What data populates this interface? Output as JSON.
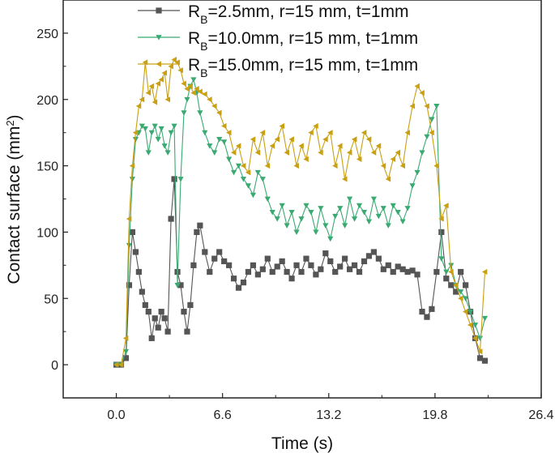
{
  "chart_data": {
    "type": "line",
    "xlabel": "Time (s)",
    "ylabel_main": "Contact surface (mm",
    "ylabel_sup": "2",
    "ylabel_close": ")",
    "xlim": [
      -3.3,
      26.4
    ],
    "ylim": [
      -25,
      275
    ],
    "xticks": [
      0.0,
      6.6,
      13.2,
      19.8,
      26.4
    ],
    "xtick_labels": [
      "0.0",
      "6.6",
      "13.2",
      "19.8",
      "26.4"
    ],
    "yticks": [
      0,
      50,
      100,
      150,
      200,
      250
    ],
    "ytick_labels": [
      "0",
      "50",
      "100",
      "150",
      "200",
      "250"
    ],
    "legend_position": "top",
    "grid": false,
    "series": [
      {
        "name_main": "R",
        "name_sub": "B",
        "name_rest": "=2.5mm, r=15 mm, t=1mm",
        "color": "#555555",
        "marker": "square",
        "x": [
          0.0,
          0.3,
          0.6,
          0.8,
          1.0,
          1.2,
          1.4,
          1.6,
          1.8,
          2.0,
          2.2,
          2.4,
          2.6,
          2.8,
          3.0,
          3.2,
          3.4,
          3.6,
          3.8,
          4.0,
          4.2,
          4.4,
          4.6,
          4.8,
          5.0,
          5.2,
          5.5,
          5.8,
          6.1,
          6.4,
          6.7,
          7.0,
          7.3,
          7.6,
          7.9,
          8.2,
          8.5,
          8.8,
          9.1,
          9.4,
          9.7,
          10.0,
          10.3,
          10.6,
          10.9,
          11.2,
          11.5,
          11.8,
          12.1,
          12.4,
          12.7,
          13.0,
          13.3,
          13.6,
          13.9,
          14.2,
          14.5,
          14.8,
          15.1,
          15.4,
          15.7,
          16.0,
          16.3,
          16.6,
          16.9,
          17.2,
          17.5,
          17.8,
          18.1,
          18.4,
          18.7,
          19.0,
          19.3,
          19.6,
          19.9,
          20.2,
          20.5,
          20.8,
          21.1,
          21.4,
          21.7,
          22.0,
          22.3,
          22.6,
          22.9
        ],
        "y": [
          0,
          0,
          5,
          60,
          100,
          85,
          70,
          55,
          45,
          40,
          20,
          35,
          28,
          40,
          35,
          25,
          110,
          140,
          70,
          60,
          40,
          25,
          45,
          75,
          100,
          105,
          85,
          70,
          80,
          85,
          78,
          75,
          65,
          58,
          62,
          70,
          75,
          68,
          72,
          80,
          70,
          74,
          78,
          70,
          65,
          75,
          70,
          80,
          75,
          68,
          72,
          84,
          78,
          70,
          74,
          80,
          72,
          75,
          70,
          78,
          82,
          85,
          80,
          72,
          75,
          70,
          74,
          72,
          70,
          71,
          68,
          40,
          36,
          42,
          70,
          100,
          65,
          60,
          55,
          70,
          60,
          40,
          20,
          5,
          3
        ]
      },
      {
        "name_main": "R",
        "name_sub": "B",
        "name_rest": "=10.0mm, r=15 mm, t=1mm",
        "color": "#3aaa72",
        "marker": "triangle-down",
        "x": [
          0.0,
          0.3,
          0.6,
          0.8,
          1.0,
          1.2,
          1.4,
          1.6,
          1.8,
          2.0,
          2.2,
          2.4,
          2.6,
          2.8,
          3.0,
          3.2,
          3.4,
          3.6,
          3.8,
          4.0,
          4.2,
          4.4,
          4.6,
          4.8,
          5.0,
          5.2,
          5.5,
          5.8,
          6.1,
          6.4,
          6.7,
          7.0,
          7.3,
          7.6,
          7.9,
          8.2,
          8.5,
          8.8,
          9.1,
          9.4,
          9.7,
          10.0,
          10.3,
          10.6,
          10.9,
          11.2,
          11.5,
          11.8,
          12.1,
          12.4,
          12.7,
          13.0,
          13.3,
          13.6,
          13.9,
          14.2,
          14.5,
          14.8,
          15.1,
          15.4,
          15.7,
          16.0,
          16.3,
          16.6,
          16.9,
          17.2,
          17.5,
          17.8,
          18.1,
          18.4,
          18.7,
          19.0,
          19.3,
          19.6,
          19.9,
          20.2,
          20.5,
          20.8,
          21.1,
          21.4,
          21.7,
          22.0,
          22.3,
          22.6,
          22.9
        ],
        "y": [
          0,
          0,
          10,
          90,
          140,
          170,
          175,
          180,
          178,
          160,
          175,
          180,
          170,
          178,
          165,
          160,
          175,
          180,
          60,
          140,
          190,
          200,
          210,
          215,
          205,
          190,
          175,
          165,
          160,
          170,
          168,
          155,
          145,
          150,
          140,
          135,
          128,
          145,
          140,
          125,
          115,
          110,
          120,
          105,
          115,
          100,
          110,
          120,
          115,
          100,
          118,
          105,
          95,
          112,
          118,
          105,
          125,
          110,
          120,
          115,
          108,
          125,
          112,
          118,
          105,
          120,
          115,
          108,
          118,
          135,
          145,
          160,
          172,
          185,
          195,
          80,
          70,
          75,
          60,
          55,
          50,
          40,
          30,
          20,
          35
        ]
      },
      {
        "name_main": "R",
        "name_sub": "B",
        "name_rest": "=15.0mm, r=15 mm, t=1mm",
        "color": "#c9a012",
        "marker": "triangle-left",
        "x": [
          0.0,
          0.3,
          0.6,
          0.8,
          1.0,
          1.2,
          1.4,
          1.6,
          1.8,
          2.0,
          2.2,
          2.4,
          2.6,
          2.8,
          3.0,
          3.2,
          3.4,
          3.6,
          3.8,
          4.0,
          4.2,
          4.4,
          4.6,
          4.8,
          5.0,
          5.2,
          5.5,
          5.8,
          6.1,
          6.4,
          6.7,
          7.0,
          7.3,
          7.6,
          7.9,
          8.2,
          8.5,
          8.8,
          9.1,
          9.4,
          9.7,
          10.0,
          10.3,
          10.6,
          10.9,
          11.2,
          11.5,
          11.8,
          12.1,
          12.4,
          12.7,
          13.0,
          13.3,
          13.6,
          13.9,
          14.2,
          14.5,
          14.8,
          15.1,
          15.4,
          15.7,
          16.0,
          16.3,
          16.6,
          16.9,
          17.2,
          17.5,
          17.8,
          18.1,
          18.4,
          18.7,
          19.0,
          19.3,
          19.6,
          19.9,
          20.2,
          20.5,
          20.8,
          21.1,
          21.4,
          21.7,
          22.0,
          22.3,
          22.6,
          22.9
        ],
        "y": [
          0,
          0,
          20,
          110,
          150,
          175,
          195,
          200,
          228,
          205,
          210,
          198,
          212,
          215,
          220,
          200,
          225,
          230,
          228,
          222,
          212,
          208,
          210,
          205,
          208,
          206,
          204,
          200,
          195,
          190,
          180,
          175,
          160,
          165,
          150,
          145,
          170,
          160,
          175,
          150,
          165,
          170,
          180,
          160,
          170,
          150,
          165,
          155,
          175,
          180,
          160,
          170,
          175,
          150,
          165,
          140,
          160,
          170,
          155,
          175,
          170,
          160,
          165,
          150,
          140,
          155,
          160,
          150,
          175,
          195,
          210,
          205,
          195,
          175,
          150,
          110,
          120,
          70,
          60,
          50,
          40,
          30,
          20,
          10,
          70
        ]
      }
    ]
  }
}
